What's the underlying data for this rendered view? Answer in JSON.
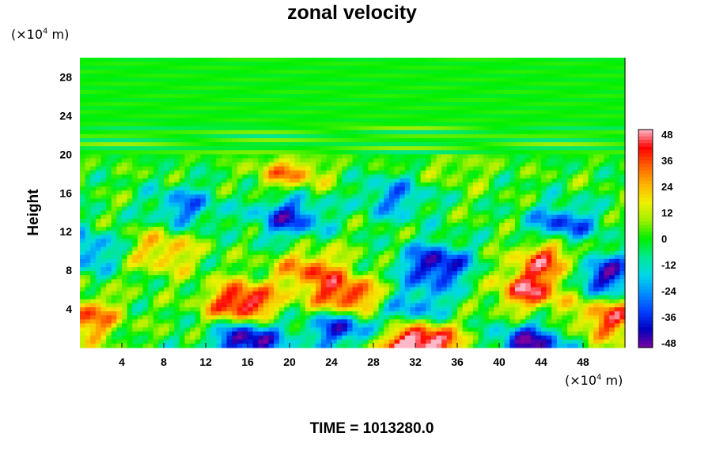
{
  "chart_data": {
    "type": "heatmap",
    "title": "zonal velocity",
    "ylabel": "Height",
    "x_unit": {
      "prefix": "(×10",
      "exp": "4",
      "suffix": " m)"
    },
    "y_unit": {
      "prefix": "(×10",
      "exp": "4",
      "suffix": " m)"
    },
    "xlim": [
      0,
      52
    ],
    "ylim": [
      0,
      30
    ],
    "x_ticks": [
      "4",
      "8",
      "12",
      "16",
      "20",
      "24",
      "28",
      "32",
      "36",
      "40",
      "44",
      "48"
    ],
    "y_ticks": [
      "4",
      "8",
      "12",
      "16",
      "20",
      "24",
      "28"
    ],
    "colorbar": {
      "range": [
        -48,
        48
      ],
      "ticks": [
        "48",
        "36",
        "24",
        "12",
        "0",
        "-12",
        "-24",
        "-36",
        "-48"
      ],
      "colors": [
        "#7a00a0",
        "#0000c0",
        "#0040ff",
        "#0090ff",
        "#00d8e8",
        "#00e890",
        "#00f000",
        "#a0f000",
        "#f0f000",
        "#ffb000",
        "#ff6000",
        "#ff0000",
        "#ffb8c8"
      ]
    },
    "features": [
      {
        "x": 15.5,
        "y": 4.5,
        "value": 50
      },
      {
        "x": 25.5,
        "y": 5.0,
        "value": 46
      },
      {
        "x": 43.0,
        "y": 6.0,
        "value": 40
      },
      {
        "x": 33.0,
        "y": 0.5,
        "value": 50
      },
      {
        "x": 8.0,
        "y": 10.0,
        "value": 24
      },
      {
        "x": 22.0,
        "y": 8.0,
        "value": 30
      },
      {
        "x": 30.0,
        "y": 0.0,
        "value": 20
      },
      {
        "x": 16.0,
        "y": 0.8,
        "value": -50
      },
      {
        "x": 25.0,
        "y": 2.2,
        "value": -42
      },
      {
        "x": 43.0,
        "y": 0.2,
        "value": -46
      },
      {
        "x": 34.0,
        "y": 8.5,
        "value": -44
      },
      {
        "x": 32.0,
        "y": 4.0,
        "value": -26
      },
      {
        "x": 50.0,
        "y": 7.5,
        "value": -42
      },
      {
        "x": 20.0,
        "y": 13.5,
        "value": -36
      },
      {
        "x": 10.0,
        "y": 14.5,
        "value": -26
      },
      {
        "x": 30.0,
        "y": 15.5,
        "value": -24
      },
      {
        "x": 46.0,
        "y": 12.5,
        "value": -36
      },
      {
        "x": 20.0,
        "y": 18.5,
        "value": 30
      },
      {
        "x": 50.5,
        "y": 3.0,
        "value": 36
      },
      {
        "x": 0.5,
        "y": 3.0,
        "value": 34
      },
      {
        "x": 0.5,
        "y": 10.0,
        "value": -26
      },
      {
        "x": 45.0,
        "y": 9.5,
        "value": 36
      },
      {
        "x": 36.0,
        "y": 19.5,
        "value": 14
      }
    ],
    "annotation": {
      "label": "TIME",
      "value": "1013280.0",
      "text": "TIME = 1013280.0"
    }
  }
}
